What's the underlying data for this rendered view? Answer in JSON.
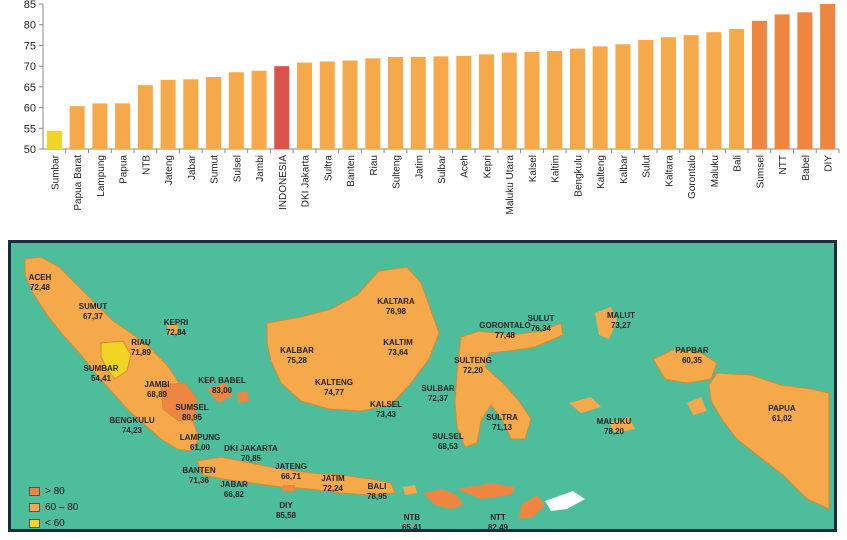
{
  "chart_data": {
    "type": "bar",
    "categories": [
      "Sumbar",
      "Papua Barat",
      "Lampung",
      "Papua",
      "NTB",
      "Jateng",
      "Jabar",
      "Sumut",
      "Sulsel",
      "Jambi",
      "INDONESIA",
      "DKI Jakarta",
      "Sultra",
      "Banten",
      "Riau",
      "Sulteng",
      "Jatim",
      "Sulbar",
      "Aceh",
      "Kepri",
      "Maluku Utara",
      "Kalsel",
      "Kaltim",
      "Bengkulu",
      "Kalteng",
      "Kalbar",
      "Sulut",
      "Kaltara",
      "Gorontalo",
      "Maluku",
      "Bali",
      "Sumsel",
      "NTT",
      "Babel",
      "DIY"
    ],
    "values": [
      54.41,
      60.35,
      61.0,
      61.02,
      65.41,
      66.71,
      66.82,
      67.37,
      68.53,
      68.89,
      70.0,
      70.85,
      71.13,
      71.36,
      71.89,
      72.2,
      72.24,
      72.37,
      72.48,
      72.84,
      73.27,
      73.43,
      73.64,
      74.23,
      74.77,
      75.28,
      76.34,
      76.98,
      77.48,
      78.2,
      78.95,
      80.95,
      82.49,
      83.0,
      85.58
    ],
    "ylim": [
      50,
      85
    ],
    "yticks": [
      50,
      55,
      60,
      65,
      70,
      75,
      80,
      85
    ],
    "grid": false,
    "colors": {
      "low": "#f2d427",
      "mid": "#f5a94a",
      "high": "#ee8540",
      "national": "#d9544a"
    }
  },
  "map": {
    "legend": [
      {
        "label": "> 80",
        "color": "#ee8540"
      },
      {
        "label": "60 – 80",
        "color": "#f5a94a"
      },
      {
        "label": "< 60",
        "color": "#f2d427"
      }
    ],
    "provinces": [
      {
        "name": "ACEH",
        "value": "72,48"
      },
      {
        "name": "SUMUT",
        "value": "67,37"
      },
      {
        "name": "KEPRI",
        "value": "72,84"
      },
      {
        "name": "RIAU",
        "value": "71,89"
      },
      {
        "name": "SUMBAR",
        "value": "54,41"
      },
      {
        "name": "JAMBI",
        "value": "68,89"
      },
      {
        "name": "KEP. BABEL",
        "value": "83,00"
      },
      {
        "name": "SUMSEL",
        "value": "80,95"
      },
      {
        "name": "BENGKULU",
        "value": "74,23"
      },
      {
        "name": "LAMPUNG",
        "value": "61,00"
      },
      {
        "name": "DKI JAKARTA",
        "value": "70,85"
      },
      {
        "name": "BANTEN",
        "value": "71,36"
      },
      {
        "name": "JABAR",
        "value": "66,82"
      },
      {
        "name": "JATENG",
        "value": "66,71"
      },
      {
        "name": "JATIM",
        "value": "72,24"
      },
      {
        "name": "DIY",
        "value": "85,58"
      },
      {
        "name": "BALI",
        "value": "78,95"
      },
      {
        "name": "NTB",
        "value": "65,41"
      },
      {
        "name": "NTT",
        "value": "82,49"
      },
      {
        "name": "KALTARA",
        "value": "76,98"
      },
      {
        "name": "KALBAR",
        "value": "75,28"
      },
      {
        "name": "KALTIM",
        "value": "73,64"
      },
      {
        "name": "KALTENG",
        "value": "74,77"
      },
      {
        "name": "KALSEL",
        "value": "73,43"
      },
      {
        "name": "GORONTALO",
        "value": "77,48"
      },
      {
        "name": "SULUT",
        "value": "76,34"
      },
      {
        "name": "SULTENG",
        "value": "72,20"
      },
      {
        "name": "SULBAR",
        "value": "72,37"
      },
      {
        "name": "SULSEL",
        "value": "68,53"
      },
      {
        "name": "SULTRA",
        "value": "71,13"
      },
      {
        "name": "MALUT",
        "value": "73,27"
      },
      {
        "name": "PAPBAR",
        "value": "60,35"
      },
      {
        "name": "MALUKU",
        "value": "78,20"
      },
      {
        "name": "PAPUA",
        "value": "61,02"
      }
    ]
  }
}
